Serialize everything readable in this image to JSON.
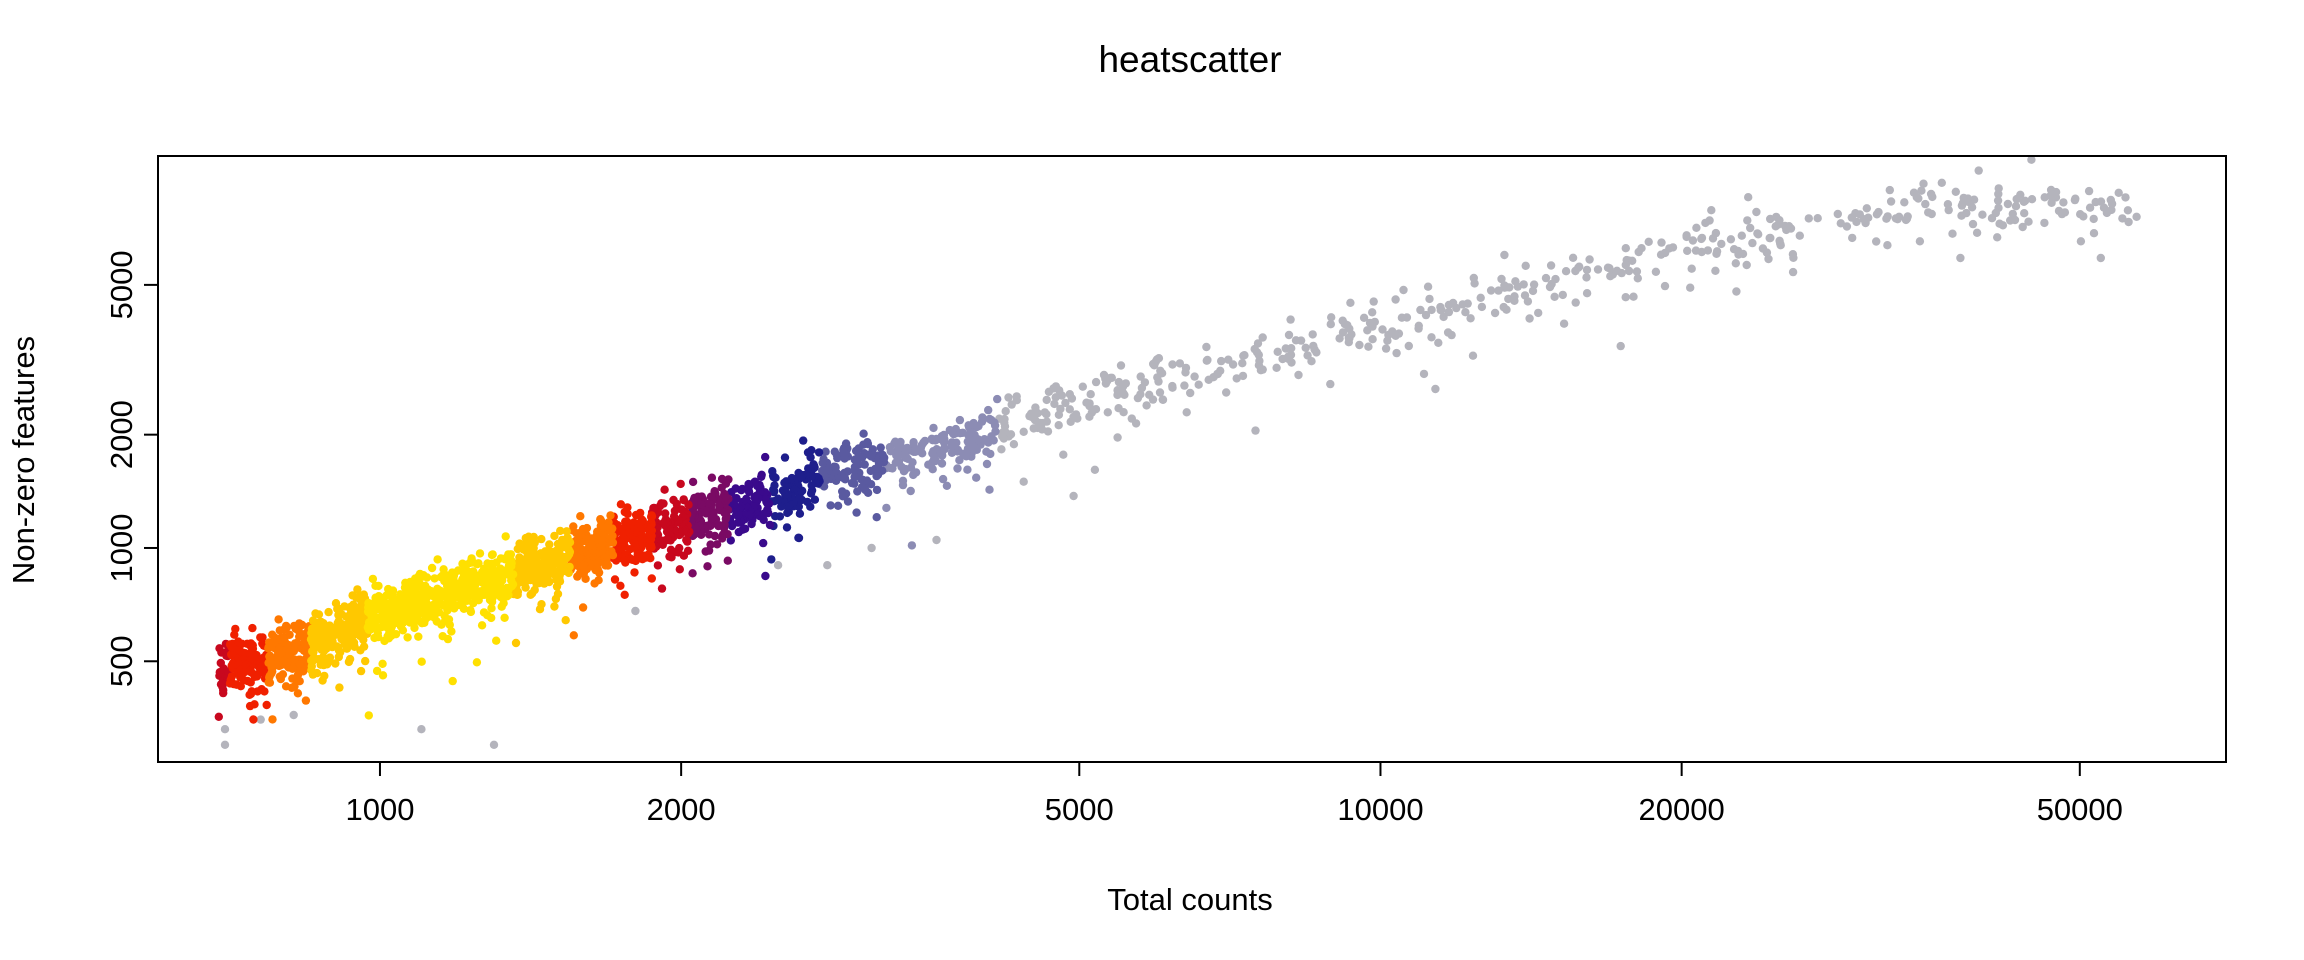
{
  "chart_data": {
    "type": "scatter",
    "title": "heatscatter",
    "xlabel": "Total counts",
    "ylabel": "Non-zero features",
    "x_scale": "log",
    "y_scale": "log",
    "xlim": [
      600,
      70000
    ],
    "ylim": [
      270,
      11000
    ],
    "xticks": [
      1000,
      2000,
      5000,
      10000,
      20000,
      50000
    ],
    "xtick_labels": [
      "1000",
      "2000",
      "5000",
      "10000",
      "20000",
      "50000"
    ],
    "yticks": [
      500,
      1000,
      2000,
      5000
    ],
    "ytick_labels": [
      "500",
      "1000",
      "2000",
      "5000"
    ],
    "grid": false,
    "legend": "none",
    "color_scale": "point density: grey (low) → blue → purple → red → yellow (high)",
    "colors": [
      "#b4b4bc",
      "#8c8cb4",
      "#5a5aa0",
      "#1e1e8c",
      "#3a0a8c",
      "#7a0a64",
      "#c8081e",
      "#f02000",
      "#ff7800",
      "#ffc800",
      "#ffe000"
    ],
    "series": [
      {
        "trend": "y ≈ x^0.73 (roughly 700 features at 1000 counts, 3300 at 8000 counts)",
        "points": [
          [
            700,
            480
          ],
          [
            720,
            500
          ],
          [
            760,
            490
          ],
          [
            800,
            520
          ],
          [
            850,
            540
          ],
          [
            900,
            600
          ],
          [
            950,
            640
          ],
          [
            1000,
            680
          ],
          [
            1050,
            700
          ],
          [
            1100,
            720
          ],
          [
            1200,
            780
          ],
          [
            1300,
            820
          ],
          [
            1400,
            880
          ],
          [
            1500,
            920
          ],
          [
            1700,
            1020
          ],
          [
            1900,
            1120
          ],
          [
            2200,
            1260
          ],
          [
            2500,
            1400
          ],
          [
            2800,
            1550
          ],
          [
            3200,
            1720
          ],
          [
            3600,
            1880
          ],
          [
            4000,
            2000
          ],
          [
            4500,
            2250
          ],
          [
            5000,
            2480
          ],
          [
            6000,
            2800
          ],
          [
            7000,
            3100
          ],
          [
            8000,
            3300
          ],
          [
            9000,
            3600
          ],
          [
            10000,
            3900
          ],
          [
            12000,
            4400
          ],
          [
            14000,
            4900
          ],
          [
            16000,
            5300
          ],
          [
            18000,
            5800
          ],
          [
            20000,
            6100
          ],
          [
            22000,
            6500
          ],
          [
            25000,
            7000
          ],
          [
            28000,
            7300
          ],
          [
            33000,
            7700
          ],
          [
            37000,
            8100
          ],
          [
            50000,
            8000
          ],
          [
            56000,
            8100
          ]
        ],
        "outliers": [
          [
            700,
            330
          ],
          [
            760,
            350
          ],
          [
            820,
            360
          ],
          [
            1100,
            330
          ],
          [
            1300,
            300
          ],
          [
            700,
            300
          ],
          [
            2800,
            900
          ],
          [
            3100,
            1000
          ],
          [
            3600,
            1050
          ],
          [
            4400,
            1500
          ],
          [
            7500,
            2050
          ],
          [
            2500,
            900
          ],
          [
            1800,
            680
          ]
        ]
      }
    ]
  }
}
